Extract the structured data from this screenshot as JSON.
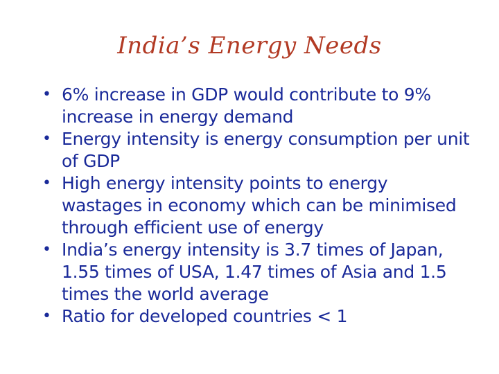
{
  "slide": {
    "title": "India’s Energy Needs",
    "bullet_icon": "•",
    "bullets": [
      "6% increase in GDP would contribute to 9% increase in energy demand",
      "Energy intensity is energy consumption per unit of GDP",
      "High energy intensity points to energy wastages in economy which can be minimised through efficient use of energy",
      "India’s energy intensity is 3.7 times of Japan, 1.55 times of USA, 1.47 times of Asia and 1.5 times the world average",
      "Ratio for developed countries < 1"
    ]
  },
  "colors": {
    "title": "#b23a24",
    "body": "#1a2a99",
    "background": "#ffffff"
  }
}
